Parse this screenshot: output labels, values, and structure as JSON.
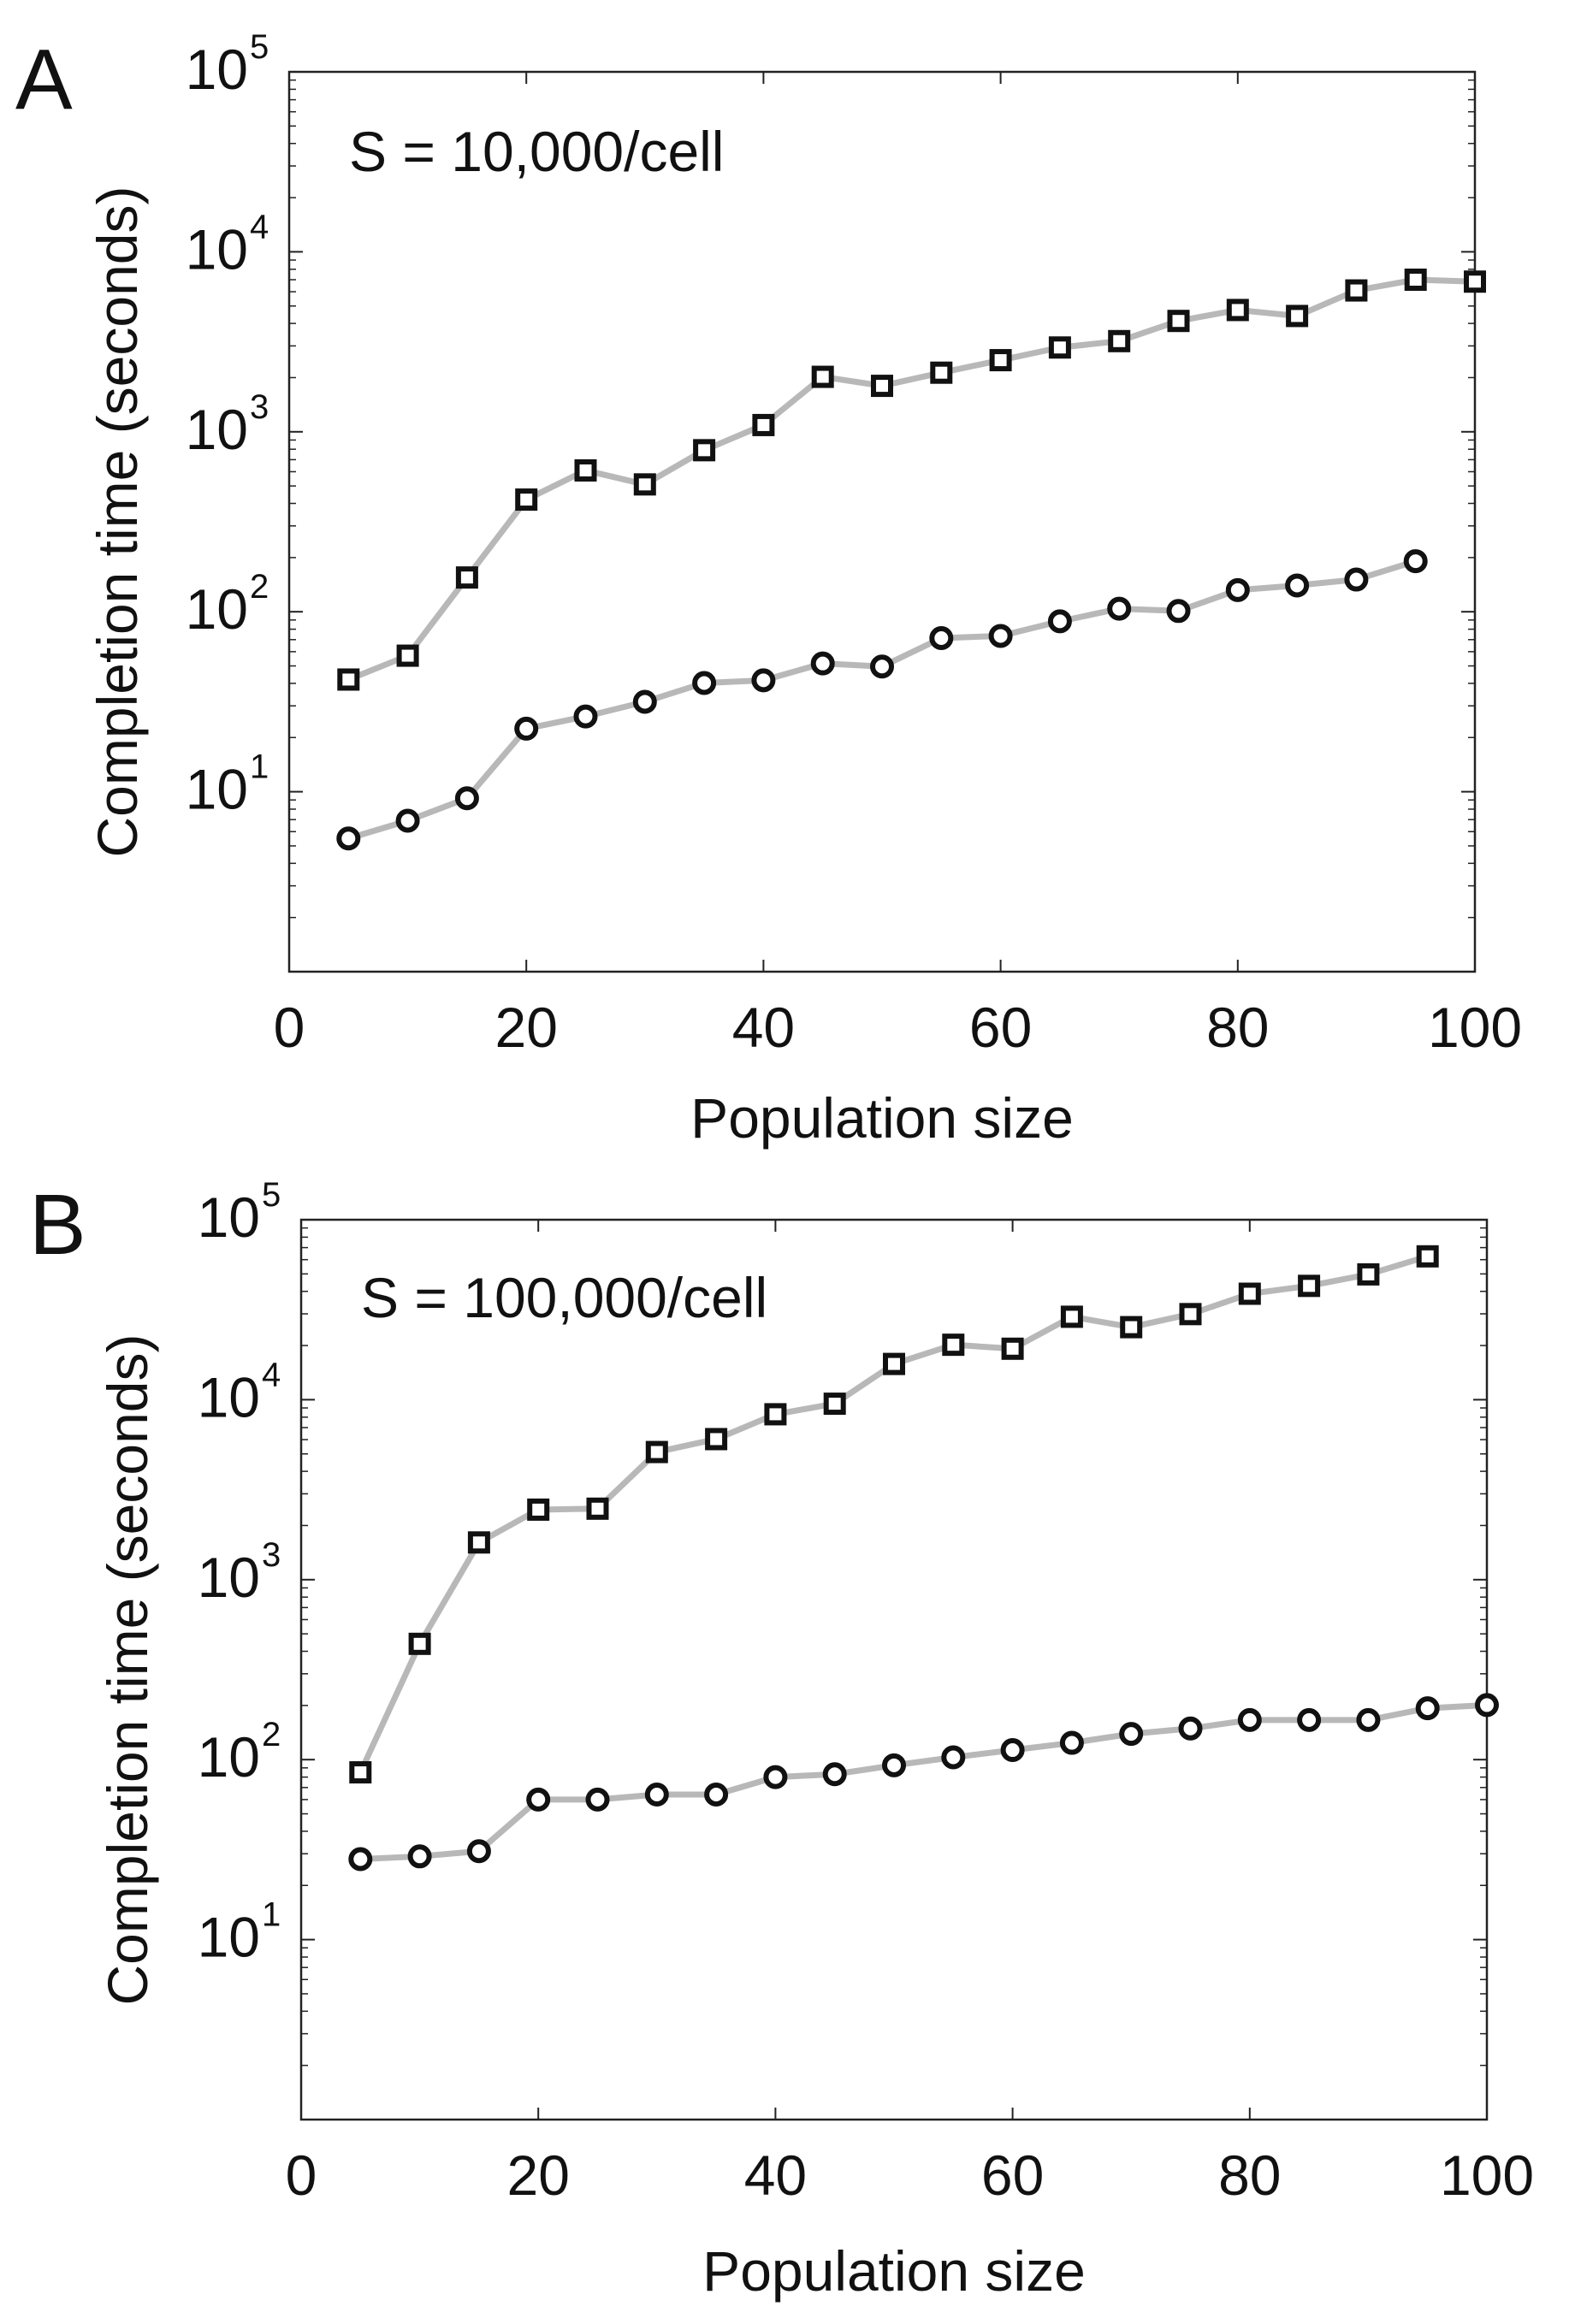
{
  "colors": {
    "line": "#b8b8b8",
    "marker": "#111111",
    "axis": "#222222"
  },
  "chart_data": [
    {
      "panel": "A",
      "type": "line",
      "annotation": "S = 10,000/cell",
      "xlabel": "Population size",
      "ylabel": "Completion time (seconds)",
      "xlim": [
        0,
        100
      ],
      "yscale": "log",
      "ylim": [
        1,
        100000
      ],
      "x_ticks": [
        0,
        20,
        40,
        60,
        80,
        100
      ],
      "y_ticks": [
        {
          "value": 10,
          "base": "10",
          "exp": "1"
        },
        {
          "value": 100,
          "base": "10",
          "exp": "2"
        },
        {
          "value": 1000,
          "base": "10",
          "exp": "3"
        },
        {
          "value": 10000,
          "base": "10",
          "exp": "4"
        },
        {
          "value": 100000,
          "base": "10",
          "exp": "5"
        }
      ],
      "series": [
        {
          "name": "squares",
          "marker": "square",
          "x": [
            5,
            10,
            15,
            20,
            25,
            30,
            35,
            40,
            45,
            50,
            55,
            60,
            65,
            70,
            75,
            80,
            85,
            90,
            95,
            100
          ],
          "values": [
            42,
            57,
            155,
            420,
            610,
            510,
            790,
            1090,
            2020,
            1800,
            2130,
            2500,
            2940,
            3190,
            4130,
            4750,
            4400,
            6100,
            7000,
            6830
          ]
        },
        {
          "name": "circles",
          "marker": "circle",
          "x": [
            5,
            10,
            15,
            20,
            25,
            30,
            35,
            40,
            45,
            50,
            55,
            60,
            65,
            70,
            75,
            80,
            85,
            90,
            95
          ],
          "values": [
            5.5,
            6.9,
            9.2,
            22.4,
            26.2,
            31.6,
            40.2,
            41.6,
            51.6,
            49.6,
            71.4,
            73.4,
            88.5,
            104,
            101,
            132,
            140,
            151,
            191
          ]
        }
      ]
    },
    {
      "panel": "B",
      "type": "line",
      "annotation": "S = 100,000/cell",
      "xlabel": "Population size",
      "ylabel": "Completion time (seconds)",
      "xlim": [
        0,
        100
      ],
      "yscale": "log",
      "ylim": [
        1,
        100000
      ],
      "x_ticks": [
        0,
        20,
        40,
        60,
        80,
        100
      ],
      "y_ticks": [
        {
          "value": 10,
          "base": "10",
          "exp": "1"
        },
        {
          "value": 100,
          "base": "10",
          "exp": "2"
        },
        {
          "value": 1000,
          "base": "10",
          "exp": "3"
        },
        {
          "value": 10000,
          "base": "10",
          "exp": "4"
        },
        {
          "value": 100000,
          "base": "10",
          "exp": "5"
        }
      ],
      "series": [
        {
          "name": "squares",
          "marker": "square",
          "x": [
            5,
            10,
            15,
            20,
            25,
            30,
            35,
            40,
            45,
            50,
            55,
            60,
            65,
            70,
            75,
            80,
            85,
            90,
            95
          ],
          "values": [
            85,
            440,
            1610,
            2450,
            2480,
            5120,
            6040,
            8300,
            9500,
            15800,
            20200,
            19200,
            28900,
            25300,
            29900,
            38800,
            42900,
            49700,
            62600
          ]
        },
        {
          "name": "circles",
          "marker": "circle",
          "x": [
            5,
            10,
            15,
            20,
            25,
            30,
            35,
            40,
            45,
            50,
            55,
            60,
            65,
            70,
            75,
            80,
            85,
            90,
            95,
            100
          ],
          "values": [
            28,
            29,
            31,
            60,
            60,
            64,
            64,
            80,
            83,
            93,
            103,
            113,
            124,
            139,
            149,
            166,
            166,
            166,
            193,
            201
          ]
        }
      ]
    }
  ]
}
